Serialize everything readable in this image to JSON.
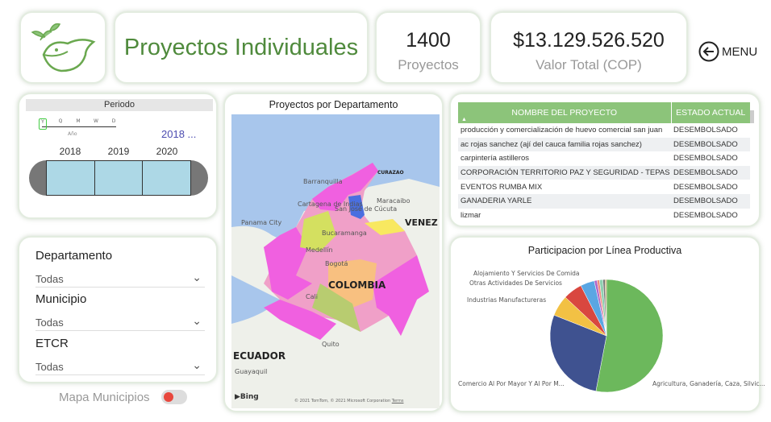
{
  "header": {
    "title": "Proyectos Individuales",
    "kpis": [
      {
        "value": "1400",
        "label": "Proyectos"
      },
      {
        "value": "$13.129.526.520",
        "label": "Valor Total (COP)"
      }
    ],
    "menu_label": "MENU"
  },
  "periodo": {
    "title": "Periodo",
    "granularity": [
      "Y",
      "Q",
      "M",
      "W",
      "D"
    ],
    "selected_granularity": "Y",
    "granularity_label": "Año",
    "range_label": "2018 ...",
    "years": [
      "2018",
      "2019",
      "2020"
    ]
  },
  "filters": [
    {
      "label": "Departamento",
      "value": "Todas"
    },
    {
      "label": "Municipio",
      "value": "Todas"
    },
    {
      "label": "ETCR",
      "value": "Todas"
    }
  ],
  "toggle": {
    "label": "Mapa Municipios",
    "on": false
  },
  "map": {
    "title": "Proyectos por Departamento",
    "labels": [
      "CURAZAO",
      "Barranquilla",
      "Maracaibo",
      "Cartagena de Indias",
      "San José de Cúcuta",
      "Panama City",
      "VENEZ",
      "Bucaramanga",
      "Medellín",
      "Bogotá",
      "COLOMBIA",
      "Cali",
      "Quito",
      "ECUADOR",
      "Guayaquil"
    ],
    "provider": "Bing",
    "attribution": "© 2021 TomTom, © 2021 Microsoft Corporation",
    "terms": "Terms"
  },
  "table": {
    "columns": [
      "NOMBRE DEL PROYECTO",
      "ESTADO ACTUAL"
    ],
    "rows": [
      [
        "producción y comercialización de huevo comercial san juan",
        "DESEMBOLSADO"
      ],
      [
        "ac rojas sanchez (ají del cauca familia rojas sanchez)",
        "DESEMBOLSADO"
      ],
      [
        "carpintería astilleros",
        "DESEMBOLSADO"
      ],
      [
        "CORPORACIÓN TERRITORIO PAZ Y SEGURIDAD - TEPAS",
        "DESEMBOLSADO"
      ],
      [
        "EVENTOS RUMBA MIX",
        "DESEMBOLSADO"
      ],
      [
        "GANADERIA YARLE",
        "DESEMBOLSADO"
      ],
      [
        "lizmar",
        "DESEMBOLSADO"
      ]
    ]
  },
  "chart_data": {
    "type": "pie",
    "title": "Participacion por Línea Productiva",
    "categories": [
      "Agricultura, Ganadería, Caza, Silvic...",
      "Comercio Al Por Mayor Y Al Por M...",
      "Industrias Manufactureras",
      "Otras Actividades De Servicios",
      "Alojamiento Y Servicios De Comida",
      "",
      "",
      "",
      "",
      ""
    ],
    "values": [
      53,
      28,
      6,
      5.5,
      4,
      0.8,
      0.7,
      1,
      0.6,
      0.4
    ],
    "colors": [
      "#6cb85c",
      "#3f5290",
      "#f2c144",
      "#d9473f",
      "#5aa6e3",
      "#b066c8",
      "#f08a7a",
      "#8fd0b0",
      "#777777",
      "#c9a26b"
    ]
  }
}
